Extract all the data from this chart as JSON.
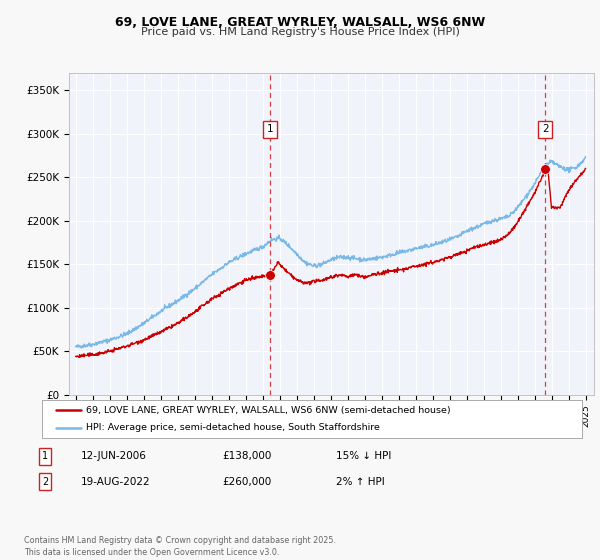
{
  "title_line1": "69, LOVE LANE, GREAT WYRLEY, WALSALL, WS6 6NW",
  "title_line2": "Price paid vs. HM Land Registry's House Price Index (HPI)",
  "fig_bg_color": "#f8f8f8",
  "plot_bg_color": "#f0f4fa",
  "grid_color": "#ffffff",
  "hpi_color": "#7ab8e8",
  "price_color": "#cc0000",
  "dashed_line_color": "#cc2222",
  "marker1_x": 2006.45,
  "marker1_price": 138000,
  "marker2_x": 2022.63,
  "marker2_price": 260000,
  "ylim": [
    0,
    370000
  ],
  "yticks": [
    0,
    50000,
    100000,
    150000,
    200000,
    250000,
    300000,
    350000
  ],
  "ytick_labels": [
    "£0",
    "£50K",
    "£100K",
    "£150K",
    "£200K",
    "£250K",
    "£300K",
    "£350K"
  ],
  "xlim_start": 1994.6,
  "xlim_end": 2025.5,
  "xticks": [
    1995,
    1996,
    1997,
    1998,
    1999,
    2000,
    2001,
    2002,
    2003,
    2004,
    2005,
    2006,
    2007,
    2008,
    2009,
    2010,
    2011,
    2012,
    2013,
    2014,
    2015,
    2016,
    2017,
    2018,
    2019,
    2020,
    2021,
    2022,
    2023,
    2024,
    2025
  ],
  "legend_label_price": "69, LOVE LANE, GREAT WYRLEY, WALSALL, WS6 6NW (semi-detached house)",
  "legend_label_hpi": "HPI: Average price, semi-detached house, South Staffordshire",
  "table_data": [
    {
      "num": "1",
      "date": "12-JUN-2006",
      "price": "£138,000",
      "hpi": "15% ↓ HPI"
    },
    {
      "num": "2",
      "date": "19-AUG-2022",
      "price": "£260,000",
      "hpi": "2% ↑ HPI"
    }
  ],
  "footer": "Contains HM Land Registry data © Crown copyright and database right 2025.\nThis data is licensed under the Open Government Licence v3.0.",
  "hpi_key_years": [
    1995,
    1996,
    1997,
    1998,
    1999,
    2000,
    2001,
    2002,
    2003,
    2004,
    2005,
    2006,
    2006.5,
    2007,
    2007.5,
    2008,
    2008.5,
    2009,
    2009.5,
    2010,
    2010.5,
    2011,
    2012,
    2013,
    2014,
    2015,
    2016,
    2016.5,
    2017,
    2017.5,
    2018,
    2018.5,
    2019,
    2019.5,
    2020,
    2020.5,
    2021,
    2021.5,
    2022,
    2022.5,
    2023,
    2023.5,
    2024,
    2024.5,
    2025
  ],
  "hpi_key_prices": [
    55000,
    58000,
    63000,
    70000,
    82000,
    96000,
    108000,
    122000,
    138000,
    152000,
    162000,
    170000,
    178000,
    180000,
    172000,
    162000,
    152000,
    148000,
    150000,
    155000,
    158000,
    158000,
    155000,
    158000,
    163000,
    168000,
    172000,
    175000,
    178000,
    182000,
    188000,
    192000,
    196000,
    200000,
    202000,
    205000,
    215000,
    228000,
    242000,
    260000,
    268000,
    262000,
    258000,
    262000,
    272000
  ],
  "price_key_years": [
    1995,
    1996,
    1997,
    1998,
    1999,
    2000,
    2001,
    2002,
    2003,
    2004,
    2005,
    2006.0,
    2006.45,
    2006.9,
    2007,
    2007.5,
    2008,
    2008.5,
    2009,
    2009.5,
    2010,
    2010.5,
    2011,
    2011.5,
    2012,
    2012.5,
    2013,
    2013.5,
    2014,
    2014.5,
    2015,
    2015.5,
    2016,
    2016.5,
    2017,
    2017.5,
    2018,
    2018.5,
    2019,
    2019.5,
    2020,
    2020.5,
    2021,
    2021.5,
    2022,
    2022.45,
    2022.63,
    2022.8,
    2023,
    2023.5,
    2024,
    2024.5,
    2025
  ],
  "price_key_prices": [
    44000,
    46000,
    50000,
    56000,
    63000,
    72000,
    82000,
    95000,
    110000,
    122000,
    132000,
    136000,
    138000,
    152000,
    150000,
    140000,
    132000,
    128000,
    130000,
    132000,
    135000,
    138000,
    136000,
    138000,
    135000,
    138000,
    140000,
    142000,
    143000,
    145000,
    148000,
    150000,
    152000,
    155000,
    158000,
    162000,
    165000,
    170000,
    172000,
    175000,
    178000,
    185000,
    198000,
    215000,
    232000,
    250000,
    260000,
    255000,
    215000,
    215000,
    235000,
    248000,
    260000
  ]
}
